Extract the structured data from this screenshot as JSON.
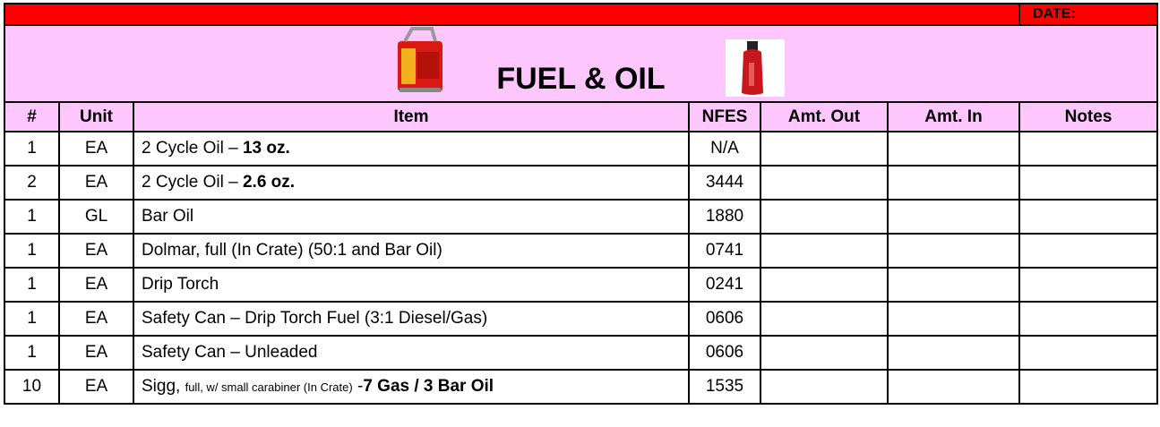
{
  "header": {
    "date_label": "DATE:",
    "title": "FUEL & OIL"
  },
  "table": {
    "columns": [
      "#",
      "Unit",
      "Item",
      "NFES",
      "Amt. Out",
      "Amt. In",
      "Notes"
    ],
    "rows": [
      {
        "qty": 1,
        "unit": "EA",
        "item": [
          {
            "text": "2 Cycle Oil – "
          },
          {
            "text": "13 oz.",
            "bold": true
          }
        ],
        "nfes": "N/A"
      },
      {
        "qty": 2,
        "unit": "EA",
        "item": [
          {
            "text": "2 Cycle Oil – "
          },
          {
            "text": "2.6 oz.",
            "bold": true
          }
        ],
        "nfes": "3444"
      },
      {
        "qty": 1,
        "unit": "GL",
        "item": [
          {
            "text": "Bar Oil"
          }
        ],
        "nfes": "1880"
      },
      {
        "qty": 1,
        "unit": "EA",
        "item": [
          {
            "text": "Dolmar, full (In Crate) (50:1 and Bar Oil)"
          }
        ],
        "nfes": "0741"
      },
      {
        "qty": 1,
        "unit": "EA",
        "item": [
          {
            "text": "Drip Torch"
          }
        ],
        "nfes": "0241"
      },
      {
        "qty": 1,
        "unit": "EA",
        "item": [
          {
            "text": "Safety Can – Drip Torch Fuel (3:1 Diesel/Gas)"
          }
        ],
        "nfes": "0606"
      },
      {
        "qty": 1,
        "unit": "EA",
        "item": [
          {
            "text": "Safety Can – Unleaded"
          }
        ],
        "nfes": "0606"
      },
      {
        "qty": 10,
        "unit": "EA",
        "item": [
          {
            "text": "Sigg, "
          },
          {
            "text": "full, w/ small carabiner (In Crate)",
            "small": true
          },
          {
            "text": " -"
          },
          {
            "text": "7 Gas / 3 Bar Oil",
            "bold": true
          }
        ],
        "nfes": "1535"
      }
    ]
  }
}
